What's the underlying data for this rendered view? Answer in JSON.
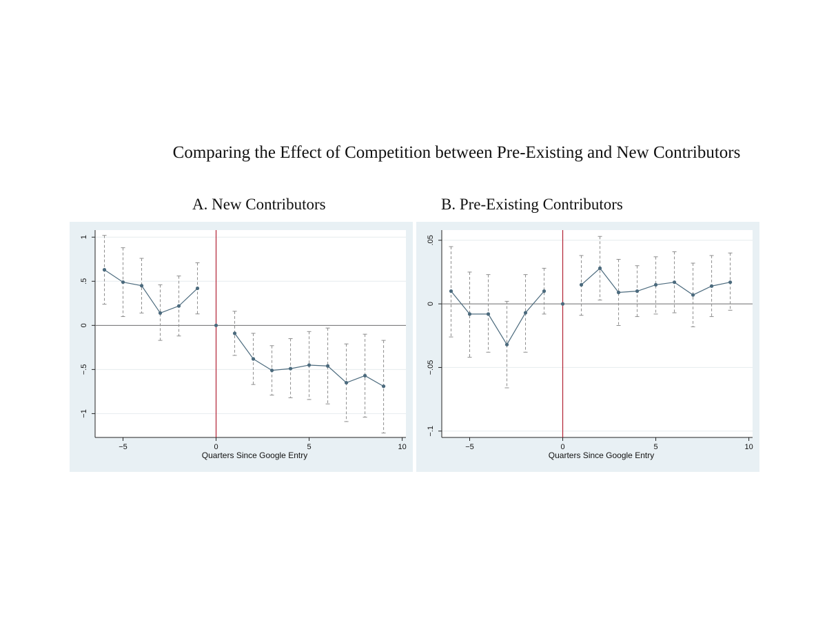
{
  "title": "Comparing the Effect of Competition between Pre-Existing and New Contributors",
  "colors": {
    "panel_bg": "#e8f0f4",
    "plot_bg": "#ffffff",
    "series": "#4b6a7d",
    "ci": "#8c8c8c",
    "zero_line": "#6e6e6e",
    "event_line": "#b22234",
    "grid": "#e6ebee"
  },
  "chart_data": [
    {
      "type": "line",
      "title": "A. New Contributors",
      "xlabel": "Quarters Since Google Entry",
      "ylabel": "",
      "xlim": [
        -6.5,
        10.2
      ],
      "ylim": [
        -1.27,
        1.08
      ],
      "xticks": [
        -5,
        0,
        5,
        10
      ],
      "xtick_labels": [
        "−5",
        "0",
        "5",
        "10"
      ],
      "yticks": [
        -1,
        -0.5,
        0,
        0.5,
        1
      ],
      "ytick_labels": [
        "−1",
        "−.5",
        "0",
        ".5",
        "1"
      ],
      "grid": true,
      "event_line_x": 0,
      "zero_line_y": 0,
      "series": [
        {
          "x": [
            -6,
            -5,
            -4,
            -3,
            -2,
            -1,
            0,
            1,
            2,
            3,
            4,
            5,
            6,
            7,
            8,
            9
          ],
          "y": [
            0.63,
            0.49,
            0.45,
            0.14,
            0.22,
            0.42,
            0,
            -0.09,
            -0.38,
            -0.51,
            -0.49,
            -0.45,
            -0.46,
            -0.65,
            -0.57,
            -0.69
          ],
          "ci_low": [
            0.24,
            0.1,
            0.14,
            -0.17,
            -0.12,
            0.13,
            null,
            -0.34,
            -0.67,
            -0.79,
            -0.82,
            -0.84,
            -0.89,
            -1.09,
            -1.04,
            -1.22
          ],
          "ci_high": [
            1.02,
            0.88,
            0.76,
            0.46,
            0.56,
            0.71,
            null,
            0.16,
            -0.09,
            -0.23,
            -0.15,
            -0.07,
            -0.03,
            -0.21,
            -0.1,
            -0.17
          ]
        }
      ]
    },
    {
      "type": "line",
      "title": "B. Pre-Existing Contributors",
      "xlabel": "Quarters Since Google Entry",
      "ylabel": "",
      "xlim": [
        -6.5,
        10.2
      ],
      "ylim": [
        -0.105,
        0.058
      ],
      "xticks": [
        -5,
        0,
        5,
        10
      ],
      "xtick_labels": [
        "−5",
        "0",
        "5",
        "10"
      ],
      "yticks": [
        -0.1,
        -0.05,
        0,
        0.05
      ],
      "ytick_labels": [
        "−.1",
        "−.05",
        "0",
        ".05"
      ],
      "grid": true,
      "event_line_x": 0,
      "zero_line_y": 0,
      "series": [
        {
          "x": [
            -6,
            -5,
            -4,
            -3,
            -2,
            -1,
            0,
            1,
            2,
            3,
            4,
            5,
            6,
            7,
            8,
            9
          ],
          "y": [
            0.01,
            -0.008,
            -0.008,
            -0.032,
            -0.007,
            0.01,
            0,
            0.015,
            0.028,
            0.009,
            0.01,
            0.015,
            0.017,
            0.007,
            0.014,
            0.017
          ],
          "ci_low": [
            -0.026,
            -0.042,
            -0.038,
            -0.066,
            -0.038,
            -0.008,
            null,
            -0.009,
            0.003,
            -0.017,
            -0.01,
            -0.008,
            -0.007,
            -0.018,
            -0.01,
            -0.005
          ],
          "ci_high": [
            0.045,
            0.025,
            0.023,
            0.002,
            0.023,
            0.028,
            null,
            0.038,
            0.053,
            0.035,
            0.03,
            0.037,
            0.041,
            0.032,
            0.038,
            0.04
          ]
        }
      ]
    }
  ]
}
